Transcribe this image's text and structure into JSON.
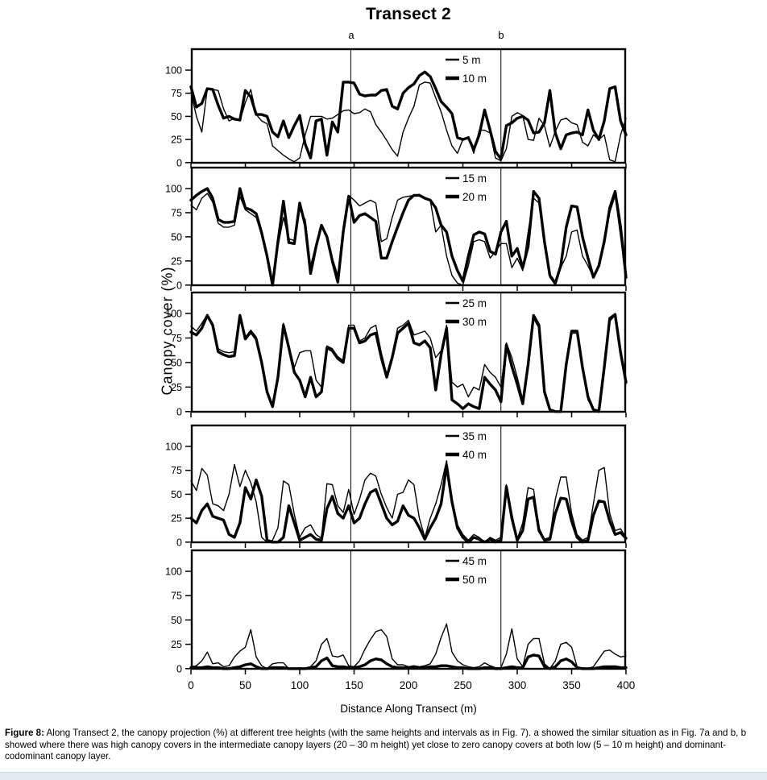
{
  "figure": {
    "caption_label": "Figure 8:",
    "caption_text": " Along Transect 2, the canopy projection (%) at different tree heights (with the same heights and intervals as in Fig. 7).  a showed the similar situation as in Fig. 7a and b, b showed where there was high canopy covers in the intermediate canopy layers (20 – 30 m height) yet close to zero canopy covers at both low (5 – 10 m height) and dominant-codominant canopy layer."
  },
  "colors": {
    "line": "#000000",
    "background": "#ffffff",
    "footer_bar": "#e4eaee"
  },
  "chart_data": {
    "type": "line",
    "title": "Transect 2",
    "xlabel": "Distance Along Transect (m)",
    "ylabel": "Canopy cover (%)",
    "x_start": 0,
    "x_step": 5,
    "xlim": [
      0,
      400
    ],
    "ylim_per_panel": [
      0,
      115
    ],
    "x_ticks": [
      0,
      50,
      100,
      150,
      200,
      250,
      300,
      350,
      400
    ],
    "y_ticks": [
      0,
      25,
      50,
      75,
      100
    ],
    "grid": false,
    "legend_position": "top-center-inside",
    "markers": [
      {
        "label": "a",
        "x": 147
      },
      {
        "label": "b",
        "x": 285
      }
    ],
    "panels": [
      {
        "series": [
          {
            "name": "5 m",
            "style": "thin",
            "values": [
              76,
              50,
              33,
              80,
              79,
              78,
              58,
              45,
              48,
              45,
              65,
              79,
              52,
              45,
              42,
              18,
              13,
              8,
              4,
              1,
              5,
              30,
              50,
              50,
              50,
              47,
              48,
              52,
              56,
              57,
              53,
              54,
              58,
              55,
              41,
              33,
              24,
              14,
              7,
              33,
              48,
              61,
              84,
              87,
              86,
              70,
              55,
              35,
              18,
              10,
              25,
              28,
              10,
              35,
              35,
              32,
              5,
              2,
              15,
              50,
              54,
              51,
              25,
              24,
              48,
              40,
              17,
              34,
              46,
              48,
              43,
              41,
              22,
              18,
              30,
              25,
              30,
              3,
              1,
              30,
              48
            ]
          },
          {
            "name": "10 m",
            "style": "thick",
            "values": [
              82,
              60,
              64,
              80,
              79,
              62,
              48,
              50,
              47,
              46,
              78,
              71,
              52,
              52,
              50,
              33,
              28,
              45,
              27,
              40,
              51,
              20,
              5,
              45,
              47,
              8,
              44,
              33,
              87,
              87,
              86,
              74,
              72,
              73,
              73,
              78,
              79,
              61,
              58,
              75,
              81,
              85,
              94,
              98,
              93,
              80,
              66,
              60,
              53,
              27,
              25,
              27,
              14,
              30,
              57,
              35,
              12,
              4,
              40,
              43,
              48,
              50,
              46,
              32,
              33,
              43,
              78,
              32,
              15,
              30,
              32,
              33,
              30,
              57,
              35,
              25,
              45,
              80,
              82,
              45,
              30
            ]
          }
        ]
      },
      {
        "series": [
          {
            "name": "15 m",
            "style": "thin",
            "values": [
              83,
              78,
              90,
              95,
              86,
              64,
              60,
              60,
              62,
              92,
              78,
              74,
              70,
              52,
              28,
              2,
              40,
              70,
              48,
              46,
              78,
              68,
              20,
              42,
              60,
              52,
              28,
              10,
              60,
              93,
              88,
              82,
              85,
              88,
              85,
              45,
              48,
              70,
              88,
              91,
              92,
              93,
              94,
              90,
              88,
              55,
              62,
              30,
              10,
              2,
              0,
              20,
              45,
              47,
              45,
              28,
              35,
              43,
              43,
              18,
              28,
              15,
              55,
              90,
              85,
              40,
              8,
              0,
              18,
              30,
              55,
              57,
              30,
              20,
              8,
              20,
              50,
              75,
              93,
              50,
              8
            ]
          },
          {
            "name": "20 m",
            "style": "thick",
            "values": [
              88,
              93,
              97,
              100,
              90,
              68,
              65,
              65,
              66,
              100,
              80,
              78,
              74,
              54,
              30,
              0,
              45,
              87,
              44,
              43,
              85,
              62,
              12,
              40,
              62,
              50,
              25,
              3,
              55,
              92,
              65,
              72,
              74,
              70,
              66,
              28,
              28,
              45,
              60,
              75,
              88,
              93,
              93,
              90,
              88,
              80,
              62,
              55,
              30,
              15,
              4,
              30,
              52,
              55,
              53,
              35,
              32,
              55,
              66,
              30,
              38,
              18,
              40,
              97,
              90,
              45,
              10,
              2,
              20,
              60,
              82,
              81,
              50,
              28,
              8,
              20,
              45,
              80,
              97,
              60,
              8
            ]
          }
        ]
      },
      {
        "series": [
          {
            "name": "25 m",
            "style": "thin",
            "values": [
              87,
              82,
              90,
              99,
              90,
              64,
              61,
              60,
              61,
              99,
              76,
              83,
              76,
              52,
              22,
              6,
              38,
              90,
              68,
              45,
              60,
              62,
              62,
              32,
              25,
              67,
              64,
              56,
              52,
              88,
              88,
              72,
              75,
              85,
              88,
              60,
              38,
              58,
              85,
              88,
              93,
              78,
              80,
              82,
              75,
              55,
              62,
              88,
              30,
              25,
              28,
              15,
              25,
              22,
              48,
              40,
              35,
              25,
              70,
              55,
              35,
              12,
              50,
              95,
              85,
              20,
              2,
              0,
              0,
              48,
              80,
              80,
              42,
              12,
              2,
              2,
              48,
              92,
              98,
              58,
              28
            ]
          },
          {
            "name": "30 m",
            "style": "thick",
            "values": [
              81,
              78,
              85,
              98,
              88,
              61,
              58,
              56,
              57,
              98,
              74,
              81,
              74,
              50,
              20,
              5,
              35,
              88,
              65,
              40,
              32,
              15,
              35,
              15,
              20,
              65,
              62,
              54,
              50,
              85,
              85,
              70,
              72,
              78,
              80,
              55,
              35,
              55,
              80,
              85,
              90,
              70,
              68,
              72,
              65,
              22,
              58,
              85,
              12,
              8,
              3,
              8,
              5,
              3,
              35,
              28,
              22,
              10,
              68,
              46,
              28,
              8,
              48,
              98,
              88,
              20,
              2,
              0,
              0,
              48,
              82,
              82,
              45,
              15,
              2,
              0,
              45,
              95,
              99,
              60,
              30
            ]
          }
        ]
      },
      {
        "series": [
          {
            "name": "35 m",
            "style": "thin",
            "values": [
              64,
              54,
              77,
              70,
              40,
              38,
              33,
              50,
              81,
              58,
              75,
              62,
              42,
              5,
              0,
              2,
              15,
              64,
              60,
              29,
              5,
              15,
              18,
              8,
              4,
              61,
              60,
              38,
              31,
              55,
              29,
              45,
              65,
              72,
              69,
              50,
              36,
              25,
              50,
              52,
              65,
              60,
              25,
              5,
              25,
              40,
              60,
              85,
              45,
              18,
              8,
              2,
              8,
              5,
              0,
              5,
              2,
              5,
              60,
              30,
              3,
              20,
              57,
              55,
              15,
              3,
              5,
              45,
              68,
              68,
              30,
              8,
              2,
              5,
              40,
              75,
              78,
              30,
              12,
              14,
              5
            ]
          },
          {
            "name": "40 m",
            "style": "thick",
            "values": [
              25,
              20,
              33,
              40,
              27,
              25,
              23,
              8,
              5,
              20,
              57,
              45,
              65,
              48,
              2,
              0,
              0,
              5,
              38,
              20,
              2,
              5,
              8,
              3,
              2,
              35,
              48,
              30,
              25,
              38,
              20,
              25,
              40,
              52,
              55,
              40,
              25,
              18,
              22,
              38,
              28,
              25,
              15,
              3,
              15,
              25,
              40,
              80,
              42,
              15,
              5,
              0,
              5,
              3,
              0,
              3,
              0,
              2,
              58,
              25,
              2,
              12,
              45,
              47,
              12,
              2,
              3,
              30,
              46,
              45,
              22,
              5,
              0,
              2,
              28,
              43,
              42,
              22,
              8,
              10,
              4
            ]
          }
        ]
      },
      {
        "series": [
          {
            "name": "45 m",
            "style": "thin",
            "values": [
              2,
              3,
              8,
              17,
              5,
              6,
              2,
              3,
              12,
              18,
              22,
              40,
              12,
              3,
              0,
              5,
              6,
              6,
              0,
              0,
              0,
              0,
              2,
              8,
              25,
              31,
              13,
              12,
              14,
              3,
              2,
              8,
              20,
              30,
              38,
              40,
              33,
              10,
              4,
              4,
              2,
              3,
              2,
              3,
              5,
              15,
              32,
              46,
              17,
              8,
              4,
              2,
              1,
              2,
              6,
              3,
              1,
              1,
              15,
              41,
              10,
              2,
              25,
              31,
              31,
              5,
              0,
              8,
              25,
              27,
              22,
              2,
              0,
              0,
              2,
              10,
              18,
              19,
              15,
              12,
              13
            ]
          },
          {
            "name": "50 m",
            "style": "thick",
            "values": [
              1,
              1,
              1,
              2,
              1,
              1,
              0,
              0,
              1,
              2,
              4,
              5,
              2,
              0,
              0,
              1,
              1,
              1,
              0,
              0,
              0,
              0,
              1,
              2,
              8,
              11,
              3,
              2,
              2,
              1,
              1,
              2,
              4,
              8,
              10,
              9,
              5,
              2,
              1,
              1,
              1,
              1,
              1,
              1,
              2,
              2,
              3,
              3,
              2,
              1,
              1,
              0,
              0,
              0,
              1,
              1,
              0,
              0,
              1,
              2,
              1,
              1,
              12,
              14,
              13,
              2,
              0,
              2,
              8,
              10,
              7,
              1,
              0,
              0,
              0,
              1,
              2,
              2,
              2,
              1,
              1
            ]
          }
        ]
      }
    ]
  }
}
